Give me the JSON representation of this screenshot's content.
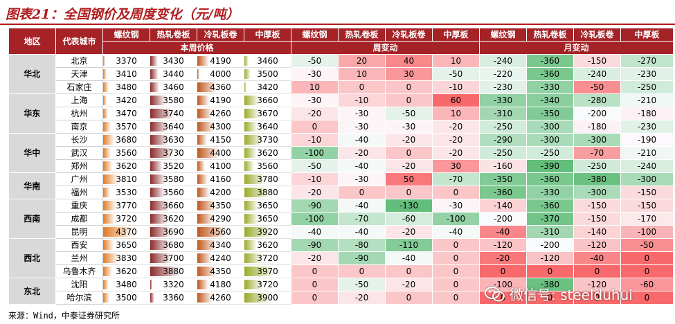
{
  "title": "图表21：全国钢价及周度变化（元/吨）",
  "footer": "来源：Wind，中泰证券研究所",
  "watermark": "微信号: steelduhui",
  "colors": {
    "header_bg": "#a52227",
    "region_bg": "#d9d9d9",
    "weekly_green": "#63be7b",
    "weekly_red": "#f8696b",
    "bar_rebar": "#e07b22",
    "bar_hot_rolled": "#8b2a2a",
    "bar_cold_rolled": "#c0561a",
    "bar_plate": "#9aaa2a"
  },
  "headers": {
    "region": "地区",
    "city": "代表城市",
    "products": [
      "螺纹钢",
      "热轧卷板",
      "冷轧板卷",
      "中厚板"
    ],
    "price_group": "本周价格",
    "weekly_group": "周变动",
    "monthly_group": "月变动"
  },
  "regions": [
    {
      "name": "华北",
      "rows": 3
    },
    {
      "name": "华东",
      "rows": 3
    },
    {
      "name": "华中",
      "rows": 3
    },
    {
      "name": "华南",
      "rows": 2
    },
    {
      "name": "西南",
      "rows": 3
    },
    {
      "name": "西北",
      "rows": 3
    },
    {
      "name": "东北",
      "rows": 2
    }
  ],
  "table_data": [
    {
      "city": "北京",
      "price": [
        3370,
        3430,
        4190,
        3460
      ],
      "weekly": [
        -50,
        20,
        40,
        10
      ],
      "monthly": [
        -240,
        -360,
        -150,
        -270
      ]
    },
    {
      "city": "天津",
      "price": [
        3410,
        3440,
        4000,
        3500
      ],
      "weekly": [
        -30,
        10,
        30,
        -50
      ],
      "monthly": [
        -220,
        -360,
        -240,
        -230
      ]
    },
    {
      "city": "石家庄",
      "price": [
        3480,
        3460,
        4360,
        3420
      ],
      "weekly": [
        10,
        0,
        0,
        -10
      ],
      "monthly": [
        -230,
        -330,
        -50,
        -250
      ]
    },
    {
      "city": "上海",
      "price": [
        3420,
        3580,
        4190,
        3660
      ],
      "weekly": [
        -30,
        -10,
        0,
        60
      ],
      "monthly": [
        -330,
        -340,
        -280,
        -210
      ]
    },
    {
      "city": "杭州",
      "price": [
        3470,
        3740,
        4260,
        3670
      ],
      "weekly": [
        -20,
        -30,
        -50,
        10
      ],
      "monthly": [
        -310,
        -350,
        -200,
        -180
      ]
    },
    {
      "city": "南京",
      "price": [
        3570,
        3640,
        4300,
        3640
      ],
      "weekly": [
        0,
        -30,
        -30,
        -20
      ],
      "monthly": [
        -250,
        -300,
        -180,
        -230
      ]
    },
    {
      "city": "长沙",
      "price": [
        3680,
        3630,
        4150,
        3730
      ],
      "weekly": [
        -10,
        -40,
        -20,
        -20
      ],
      "monthly": [
        -290,
        -300,
        -300,
        -190
      ]
    },
    {
      "city": "武汉",
      "price": [
        3560,
        3730,
        4400,
        3620
      ],
      "weekly": [
        -100,
        -20,
        0,
        -20
      ],
      "monthly": [
        -250,
        -250,
        -70,
        -210
      ]
    },
    {
      "city": "郑州",
      "price": [
        3620,
        3520,
        4100,
        3560
      ],
      "weekly": [
        -50,
        -40,
        -20,
        30
      ],
      "monthly": [
        -160,
        -390,
        -250,
        -240
      ]
    },
    {
      "city": "广州",
      "price": [
        3810,
        3580,
        4160,
        3780
      ],
      "weekly": [
        -10,
        -30,
        50,
        -70
      ],
      "monthly": [
        -350,
        -360,
        -380,
        -300
      ]
    },
    {
      "city": "福州",
      "price": [
        3530,
        3560,
        4200,
        3880
      ],
      "weekly": [
        -20,
        0,
        0,
        0
      ],
      "monthly": [
        -360,
        -330,
        -300,
        -150
      ]
    },
    {
      "city": "重庆",
      "price": [
        3770,
        3660,
        4350,
        3650
      ],
      "weekly": [
        -90,
        -40,
        -130,
        -30
      ],
      "monthly": [
        -140,
        -360,
        -150,
        -150
      ]
    },
    {
      "city": "成都",
      "price": [
        3720,
        3620,
        4290,
        3650
      ],
      "weekly": [
        -100,
        -70,
        -60,
        -100
      ],
      "monthly": [
        -200,
        -370,
        -150,
        -170
      ]
    },
    {
      "city": "昆明",
      "price": [
        4370,
        3690,
        4560,
        3920
      ],
      "weekly": [
        -40,
        -40,
        -20,
        -40
      ],
      "monthly": [
        -40,
        -310,
        -140,
        -100
      ]
    },
    {
      "city": "西安",
      "price": [
        3650,
        3680,
        4340,
        3620
      ],
      "weekly": [
        -90,
        -80,
        -110,
        0
      ],
      "monthly": [
        -120,
        -200,
        -120,
        -50
      ]
    },
    {
      "city": "兰州",
      "price": [
        3830,
        3700,
        4240,
        3720
      ],
      "weekly": [
        -20,
        -90,
        -40,
        0
      ],
      "monthly": [
        -20,
        -120,
        -40,
        0
      ]
    },
    {
      "city": "乌鲁木齐",
      "price": [
        3620,
        3880,
        4350,
        3970
      ],
      "weekly": [
        0,
        0,
        0,
        0
      ],
      "monthly": [
        0,
        0,
        0,
        0
      ]
    },
    {
      "city": "沈阳",
      "price": [
        3480,
        3320,
        4180,
        3720
      ],
      "weekly": [
        0,
        -50,
        -20,
        0
      ],
      "monthly": [
        -100,
        -380,
        -120,
        -60
      ]
    },
    {
      "city": "哈尔滨",
      "price": [
        3500,
        3360,
        4260,
        3900
      ],
      "weekly": [
        0,
        -20,
        0,
        0
      ],
      "monthly": [
        0,
        0,
        0,
        0
      ]
    }
  ]
}
